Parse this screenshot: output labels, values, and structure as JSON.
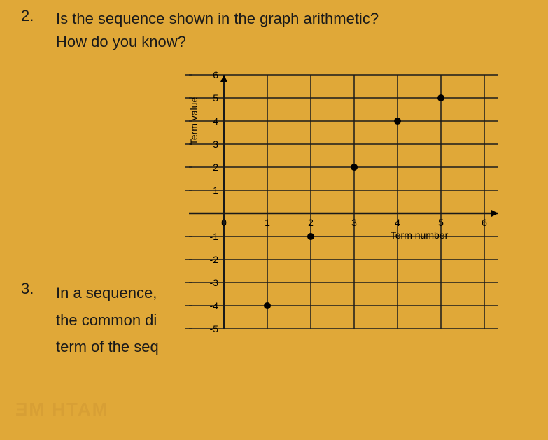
{
  "questions": {
    "q2": {
      "number": "2.",
      "line1": "Is the sequence shown in the graph arithmetic?",
      "line2": "How do you know?"
    },
    "q3": {
      "number": "3.",
      "line1": "In a sequence,",
      "line2": "the common di",
      "line3": "term of the seq"
    }
  },
  "chart": {
    "type": "scatter",
    "x_label": "Term number",
    "y_label": "Term value",
    "xlim": [
      0,
      6
    ],
    "ylim": [
      -5,
      6
    ],
    "x_ticks": [
      "0",
      "1",
      "2",
      "3",
      "4",
      "5",
      "6"
    ],
    "y_ticks_pos": [
      "6",
      "5",
      "4",
      "3",
      "2",
      "1"
    ],
    "y_ticks_zero": "0",
    "y_ticks_neg": [
      "-1",
      "-2",
      "-3",
      "-4",
      "-5"
    ],
    "points": [
      {
        "x": 1,
        "y": -4
      },
      {
        "x": 2,
        "y": -1
      },
      {
        "x": 3,
        "y": 2
      },
      {
        "x": 4,
        "y": 4
      },
      {
        "x": 5,
        "y": 5
      }
    ],
    "grid_color": "#1a1a1a",
    "axis_color": "#000000",
    "point_color": "#000000",
    "point_radius": 5,
    "label_fontsize": 14,
    "tick_fontsize": 14
  },
  "ghost": {
    "text": "MATH ME"
  },
  "colors": {
    "background": "#e0a838",
    "text": "#1a1a1a"
  }
}
